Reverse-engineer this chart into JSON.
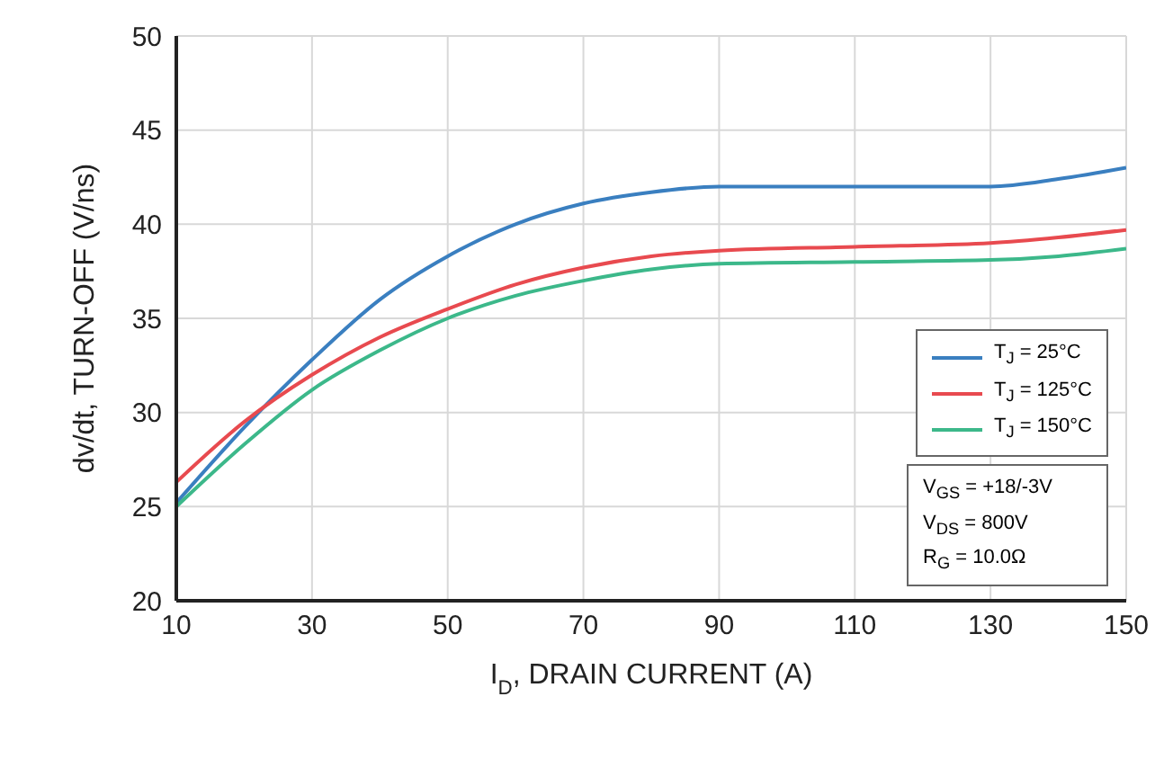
{
  "chart_data": {
    "type": "line",
    "xlabel": "I$_{D}$, DRAIN CURRENT (A)",
    "ylabel": "dv/dt, TURN-OFF (V/ns)",
    "x": [
      10,
      20,
      30,
      40,
      50,
      60,
      70,
      80,
      90,
      110,
      130,
      140,
      150
    ],
    "series": [
      {
        "name": "T$_{J}$ = 25°C",
        "color": "#3a7fc0",
        "values": [
          25.2,
          29.2,
          32.8,
          36,
          38.3,
          40,
          41.1,
          41.7,
          42,
          42,
          42,
          42.4,
          43
        ]
      },
      {
        "name": "T$_{J}$ = 125°C",
        "color": "#e84a4f",
        "values": [
          26.3,
          29.5,
          32,
          34,
          35.5,
          36.8,
          37.7,
          38.3,
          38.6,
          38.8,
          39,
          39.3,
          39.7
        ]
      },
      {
        "name": "T$_{J}$ = 150°C",
        "color": "#3cb88a",
        "values": [
          25,
          28.3,
          31.2,
          33.3,
          35,
          36.2,
          37,
          37.6,
          37.9,
          38,
          38.1,
          38.3,
          38.7
        ]
      }
    ],
    "xlim": [
      10,
      150
    ],
    "xticks": [
      10,
      30,
      50,
      70,
      90,
      110,
      130,
      150
    ],
    "ylim": [
      20,
      50
    ],
    "yticks": [
      20,
      25,
      30,
      35,
      40,
      45,
      50
    ],
    "grid": true,
    "legend": "bottom right",
    "marker": "none",
    "line_style": "solid",
    "annotations": [
      "V$_{GS}$ = +18/-3V",
      "V$_{DS}$ = 800V",
      "R$_{G}$ = 10.0Ω"
    ]
  }
}
